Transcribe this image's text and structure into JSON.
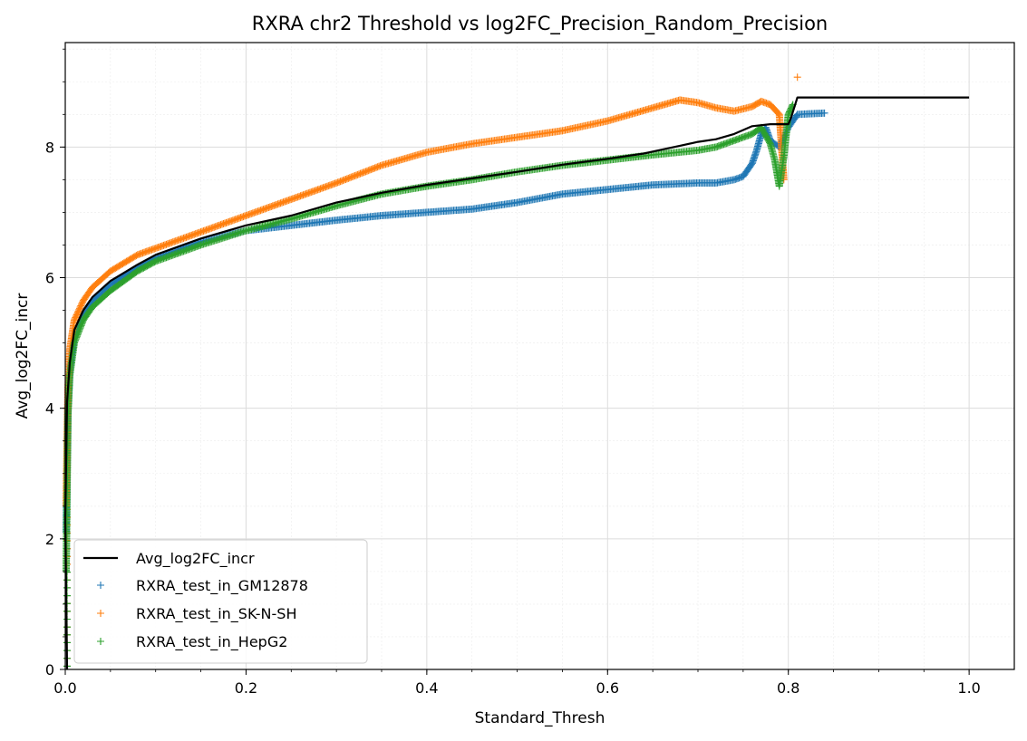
{
  "chart_data": {
    "type": "scatter",
    "title": "RXRA chr2 Threshold vs log2FC_Precision_Random_Precision",
    "xlabel": "Standard_Thresh",
    "ylabel": "Avg_log2FC_incr",
    "xlim": [
      0.0,
      1.05
    ],
    "ylim": [
      0.0,
      9.6
    ],
    "x_ticks": [
      0.0,
      0.2,
      0.4,
      0.6,
      0.8,
      1.0
    ],
    "x_tick_labels": [
      "0.0",
      "0.2",
      "0.4",
      "0.6",
      "0.8",
      "1.0"
    ],
    "y_ticks": [
      0,
      2,
      4,
      6,
      8
    ],
    "y_tick_labels": [
      "0",
      "2",
      "4",
      "6",
      "8"
    ],
    "grid": true,
    "minor_grid": true,
    "legend_position": "lower-left",
    "line": {
      "name": "Avg_log2FC_incr",
      "color": "#000000",
      "x": [
        0.0,
        0.002,
        0.005,
        0.01,
        0.02,
        0.03,
        0.05,
        0.08,
        0.1,
        0.15,
        0.2,
        0.25,
        0.3,
        0.35,
        0.4,
        0.45,
        0.5,
        0.55,
        0.6,
        0.64,
        0.66,
        0.68,
        0.7,
        0.72,
        0.74,
        0.76,
        0.78,
        0.8,
        0.803,
        0.81,
        1.0
      ],
      "y": [
        2.3,
        4.1,
        4.7,
        5.2,
        5.5,
        5.7,
        5.95,
        6.2,
        6.35,
        6.6,
        6.8,
        6.95,
        7.15,
        7.3,
        7.42,
        7.52,
        7.62,
        7.73,
        7.82,
        7.9,
        7.96,
        8.02,
        8.08,
        8.12,
        8.2,
        8.32,
        8.35,
        8.35,
        8.45,
        8.76,
        8.76
      ]
    },
    "series": [
      {
        "name": "RXRA_test_in_GM12878",
        "color": "#1f77b4",
        "marker": "+",
        "x": [
          0.001,
          0.003,
          0.005,
          0.01,
          0.02,
          0.03,
          0.05,
          0.08,
          0.1,
          0.15,
          0.2,
          0.25,
          0.3,
          0.35,
          0.4,
          0.45,
          0.5,
          0.55,
          0.6,
          0.65,
          0.7,
          0.72,
          0.74,
          0.75,
          0.76,
          0.765,
          0.77,
          0.775,
          0.78,
          0.79,
          0.8,
          0.81,
          0.84
        ],
        "y": [
          2.1,
          4.0,
          4.6,
          5.1,
          5.45,
          5.65,
          5.9,
          6.15,
          6.3,
          6.55,
          6.72,
          6.8,
          6.88,
          6.95,
          7.0,
          7.05,
          7.15,
          7.28,
          7.35,
          7.42,
          7.45,
          7.45,
          7.5,
          7.55,
          7.75,
          7.95,
          8.2,
          8.3,
          8.1,
          8.0,
          8.3,
          8.5,
          8.52
        ]
      },
      {
        "name": "RXRA_test_in_SK-N-SH",
        "color": "#ff7f0e",
        "marker": "+",
        "x": [
          0.001,
          0.003,
          0.005,
          0.01,
          0.02,
          0.03,
          0.05,
          0.08,
          0.1,
          0.15,
          0.2,
          0.25,
          0.3,
          0.35,
          0.4,
          0.45,
          0.5,
          0.55,
          0.6,
          0.65,
          0.68,
          0.7,
          0.72,
          0.74,
          0.76,
          0.77,
          0.78,
          0.79,
          0.795,
          0.81
        ],
        "y": [
          2.5,
          4.3,
          4.9,
          5.35,
          5.65,
          5.85,
          6.1,
          6.35,
          6.45,
          6.7,
          6.95,
          7.2,
          7.45,
          7.72,
          7.92,
          8.05,
          8.15,
          8.25,
          8.4,
          8.6,
          8.72,
          8.68,
          8.6,
          8.55,
          8.62,
          8.7,
          8.65,
          8.5,
          7.5,
          9.07
        ]
      },
      {
        "name": "RXRA_test_in_HepG2",
        "color": "#2ca02c",
        "marker": "+",
        "x": [
          0.001,
          0.003,
          0.005,
          0.01,
          0.02,
          0.03,
          0.05,
          0.08,
          0.1,
          0.15,
          0.2,
          0.25,
          0.3,
          0.35,
          0.4,
          0.45,
          0.5,
          0.55,
          0.6,
          0.65,
          0.7,
          0.72,
          0.74,
          0.76,
          0.77,
          0.78,
          0.785,
          0.79,
          0.795,
          0.8,
          0.805
        ],
        "y": [
          1.5,
          3.9,
          4.5,
          5.0,
          5.35,
          5.55,
          5.8,
          6.1,
          6.25,
          6.5,
          6.72,
          6.9,
          7.1,
          7.28,
          7.4,
          7.5,
          7.62,
          7.72,
          7.8,
          7.88,
          7.95,
          8.0,
          8.1,
          8.2,
          8.3,
          8.05,
          7.8,
          7.4,
          7.85,
          8.5,
          8.65
        ]
      }
    ]
  }
}
